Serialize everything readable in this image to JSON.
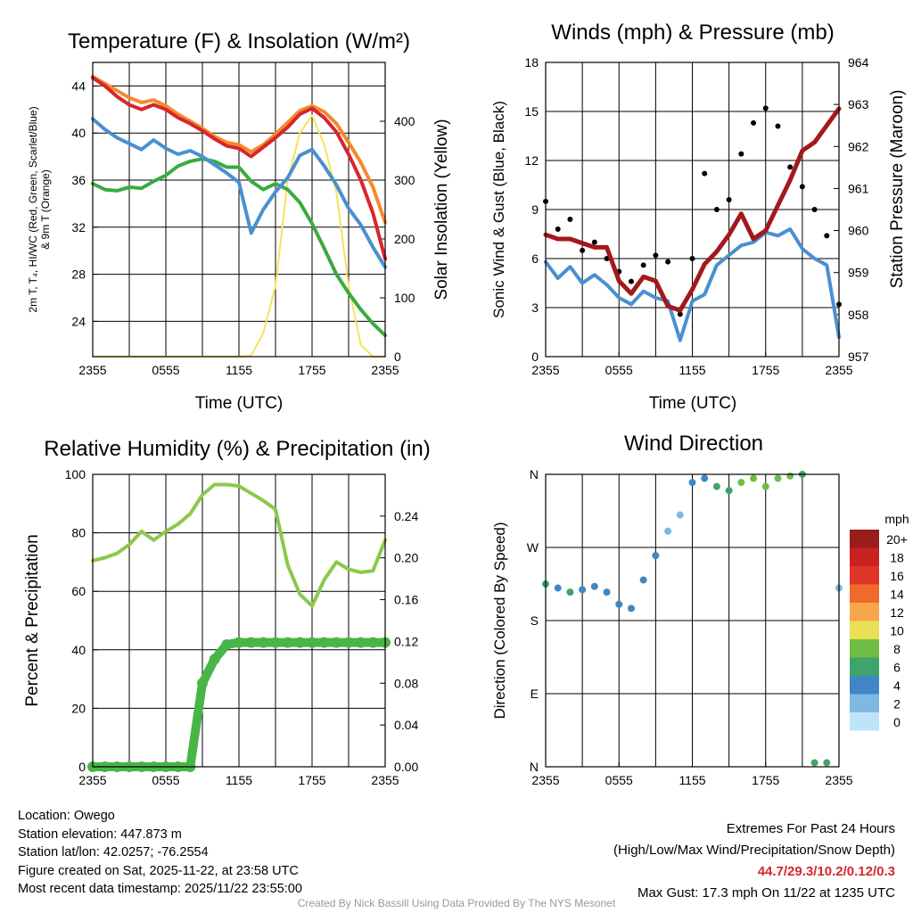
{
  "colors": {
    "temp_red": "#d7262b",
    "heat_green": "#3aab3f",
    "dewpoint_blue": "#4a90d0",
    "temp9m_orange": "#f28b2b",
    "insolation_yellow": "#f5e35a",
    "wind_blue": "#4a90d0",
    "gust_black": "#000000",
    "pressure_maroon": "#a3181c",
    "rh_green": "#8cc84b",
    "precip_green": "#49b547",
    "grid": "#000000"
  },
  "chart_data": [
    {
      "id": "temp",
      "type": "line",
      "title": "Temperature (F) & Insolation (W/m²)",
      "xlabel": "Time (UTC)",
      "ylabel": "2m T, T₄, HI/WC (Red, Green, Scarlet/Blue) & 9m T (Orange)",
      "ylabel_line1": "2m T, T₄, HI/WC (Red, Green, Scarlet/Blue)",
      "ylabel_line2": "& 9m T (Orange)",
      "y2label": "Solar Insolation (Yellow)",
      "x_ticks": [
        "2355",
        "0555",
        "1155",
        "1755",
        "2355"
      ],
      "y_ticks": [
        "24",
        "28",
        "32",
        "36",
        "40",
        "44"
      ],
      "y2_ticks": [
        "0",
        "100",
        "200",
        "300",
        "400"
      ],
      "ylim": [
        21,
        46
      ],
      "y2lim": [
        0,
        500
      ],
      "x_hours": [
        0,
        1,
        2,
        3,
        4,
        5,
        6,
        7,
        8,
        9,
        10,
        11,
        12,
        13,
        14,
        15,
        16,
        17,
        18,
        19,
        20,
        21,
        22,
        23,
        24
      ],
      "series": [
        {
          "name": "2m T",
          "color": "#d7262b",
          "values": [
            44.7,
            44.0,
            43.1,
            42.4,
            42.0,
            42.4,
            42.0,
            41.3,
            40.8,
            40.2,
            39.5,
            38.9,
            38.7,
            38.0,
            38.8,
            39.6,
            40.5,
            41.6,
            42.1,
            41.3,
            40.1,
            38.2,
            36.0,
            33.2,
            29.3
          ]
        },
        {
          "name": "9m T",
          "color": "#f28b2b",
          "values": [
            44.8,
            44.2,
            43.6,
            43.0,
            42.6,
            42.8,
            42.3,
            41.6,
            41.0,
            40.4,
            39.7,
            39.2,
            39.0,
            38.4,
            39.0,
            39.9,
            40.9,
            41.9,
            42.3,
            41.8,
            40.8,
            39.2,
            37.5,
            35.4,
            32.4
          ]
        },
        {
          "name": "HI/WC",
          "color": "#4a90d0",
          "values": [
            41.2,
            40.3,
            39.6,
            39.1,
            38.6,
            39.4,
            38.7,
            38.2,
            38.5,
            38.0,
            37.3,
            36.6,
            35.8,
            31.5,
            33.5,
            35.0,
            36.2,
            38.1,
            38.6,
            37.2,
            35.6,
            33.6,
            32.2,
            30.3,
            28.6
          ]
        },
        {
          "name": "Td",
          "color": "#3aab3f",
          "values": [
            35.7,
            35.2,
            35.1,
            35.4,
            35.3,
            35.9,
            36.4,
            37.2,
            37.6,
            37.8,
            37.6,
            37.1,
            37.1,
            35.9,
            35.2,
            35.7,
            35.2,
            34.1,
            32.3,
            30.2,
            28.0,
            26.4,
            25.0,
            23.8,
            22.8
          ]
        },
        {
          "name": "Insolation",
          "color": "#f5e35a",
          "axis": "y2",
          "values": [
            0,
            0,
            0,
            0,
            0,
            0,
            0,
            0,
            0,
            0,
            0,
            0,
            0,
            2,
            40,
            120,
            300,
            380,
            410,
            360,
            280,
            120,
            20,
            0,
            0
          ]
        }
      ]
    },
    {
      "id": "wind",
      "type": "line",
      "title": "Winds (mph) & Pressure (mb)",
      "xlabel": "Time (UTC)",
      "ylabel": "Sonic Wind & Gust (Blue, Black)",
      "y2label": "Station Pressure (Maroon)",
      "x_ticks": [
        "2355",
        "0555",
        "1155",
        "1755",
        "2355"
      ],
      "y_ticks": [
        "0",
        "3",
        "6",
        "9",
        "12",
        "15",
        "18"
      ],
      "y2_ticks": [
        "957",
        "958",
        "959",
        "960",
        "961",
        "962",
        "963",
        "964"
      ],
      "ylim": [
        0,
        18
      ],
      "y2lim": [
        957,
        964
      ],
      "x_hours": [
        0,
        1,
        2,
        3,
        4,
        5,
        6,
        7,
        8,
        9,
        10,
        11,
        12,
        13,
        14,
        15,
        16,
        17,
        18,
        19,
        20,
        21,
        22,
        23,
        24
      ],
      "series": [
        {
          "name": "Sonic Wind",
          "color": "#4a90d0",
          "values": [
            5.8,
            4.8,
            5.5,
            4.5,
            5.0,
            4.4,
            3.6,
            3.2,
            4.0,
            3.6,
            3.4,
            1.0,
            3.4,
            3.8,
            5.6,
            6.2,
            6.8,
            7.0,
            7.6,
            7.4,
            7.8,
            6.6,
            6.0,
            5.6,
            1.2
          ]
        },
        {
          "name": "Gust",
          "color": "#000000",
          "type": "scatter",
          "values": [
            9.5,
            7.8,
            8.4,
            6.5,
            7.0,
            6.0,
            5.2,
            4.6,
            5.6,
            6.2,
            5.8,
            2.6,
            6.0,
            11.2,
            9.0,
            9.6,
            12.4,
            14.3,
            15.2,
            14.1,
            11.6,
            10.4,
            9.0,
            7.4,
            3.2
          ]
        },
        {
          "name": "Station Pressure",
          "color": "#a3181c",
          "axis": "y2",
          "values": [
            959.9,
            959.8,
            959.8,
            959.7,
            959.6,
            959.6,
            958.8,
            958.5,
            958.9,
            958.8,
            958.2,
            958.1,
            958.6,
            959.2,
            959.5,
            959.9,
            960.4,
            959.8,
            960.0,
            960.6,
            961.2,
            961.9,
            962.1,
            962.5,
            962.9
          ]
        }
      ]
    },
    {
      "id": "rh",
      "type": "line",
      "title": "Relative Humidity (%) & Precipitation (in)",
      "ylabel": "Percent & Precipitation",
      "x_ticks": [
        "2355",
        "0555",
        "1155",
        "1755",
        "2355"
      ],
      "y_ticks": [
        "0",
        "20",
        "40",
        "60",
        "80",
        "100"
      ],
      "y2_ticks": [
        "0.00",
        "0.04",
        "0.08",
        "0.12",
        "0.16",
        "0.20",
        "0.24"
      ],
      "ylim": [
        0,
        100
      ],
      "y2lim": [
        0,
        0.28
      ],
      "x_hours": [
        0,
        1,
        2,
        3,
        4,
        5,
        6,
        7,
        8,
        9,
        10,
        11,
        12,
        13,
        14,
        15,
        16,
        17,
        18,
        19,
        20,
        21,
        22,
        23,
        24
      ],
      "series": [
        {
          "name": "Relative Humidity",
          "color": "#8cc84b",
          "values": [
            70.5,
            71.5,
            73.0,
            76.0,
            80.5,
            77.5,
            80.5,
            83.0,
            86.5,
            93.0,
            96.5,
            96.5,
            96.0,
            93.5,
            91.0,
            88.0,
            69.0,
            59.0,
            55.0,
            64.0,
            70.0,
            67.5,
            66.5,
            67.0,
            77.5
          ]
        },
        {
          "name": "Precipitation",
          "color": "#49b547",
          "axis": "y2",
          "type": "scatter",
          "values": [
            0.0,
            0.0,
            0.0,
            0.0,
            0.0,
            0.0,
            0.0,
            0.0,
            0.0,
            0.08,
            0.103,
            0.117,
            0.119,
            0.119,
            0.119,
            0.119,
            0.119,
            0.119,
            0.119,
            0.119,
            0.119,
            0.119,
            0.119,
            0.119,
            0.119
          ]
        }
      ]
    },
    {
      "id": "wdir",
      "type": "scatter",
      "title": "Wind Direction",
      "ylabel": "Direction (Colored By Speed)",
      "x_ticks": [
        "2355",
        "0555",
        "1155",
        "1755",
        "2355"
      ],
      "y_ticks": [
        "N",
        "E",
        "S",
        "W",
        "N"
      ],
      "ylim": [
        0,
        360
      ],
      "legend_title": "mph",
      "legend_labels": [
        "20+",
        "18",
        "16",
        "14",
        "12",
        "10",
        "8",
        "6",
        "4",
        "2",
        "0"
      ],
      "legend_colors": [
        "#9b1c1c",
        "#c8231f",
        "#e0352b",
        "#f06a2c",
        "#f8a64a",
        "#eadf57",
        "#6fbd45",
        "#3fa46a",
        "#3f87c4",
        "#7fb8e3",
        "#bfe4f7"
      ],
      "x_hours": [
        0,
        1,
        2,
        3,
        4,
        5,
        6,
        7,
        8,
        9,
        10,
        11,
        12,
        13,
        14,
        15,
        16,
        17,
        18,
        19,
        20,
        21,
        22,
        23,
        24
      ],
      "directions": [
        225,
        220,
        215,
        218,
        222,
        215,
        200,
        195,
        230,
        260,
        290,
        310,
        350,
        355,
        345,
        340,
        350,
        355,
        345,
        355,
        358,
        360,
        5,
        5,
        220
      ],
      "speeds": [
        5,
        4,
        5,
        4,
        4,
        4,
        3,
        3,
        3,
        3,
        2,
        1,
        3,
        4,
        6,
        6,
        7,
        7,
        8,
        7,
        8,
        6,
        6,
        5,
        2
      ]
    }
  ],
  "footer": {
    "location": "Location: Owego",
    "elevation": "Station elevation: 447.873 m",
    "latlon": "Station lat/lon: 42.0257; -76.2554",
    "created": "Figure created on Sat, 2025-11-22, at 23:58 UTC",
    "recent": "Most recent data timestamp: 2025/11/22 23:55:00",
    "extremes_title": "Extremes For Past 24 Hours",
    "extremes_fields": "(High/Low/Max Wind/Precipitation/Snow Depth)",
    "extremes_values": "44.7/29.3/10.2/0.12/0.3",
    "max_gust": "Max Gust: 17.3 mph On 11/22 at 1235 UTC",
    "credit": "Created By Nick Bassill Using Data Provided By The NYS Mesonet"
  }
}
